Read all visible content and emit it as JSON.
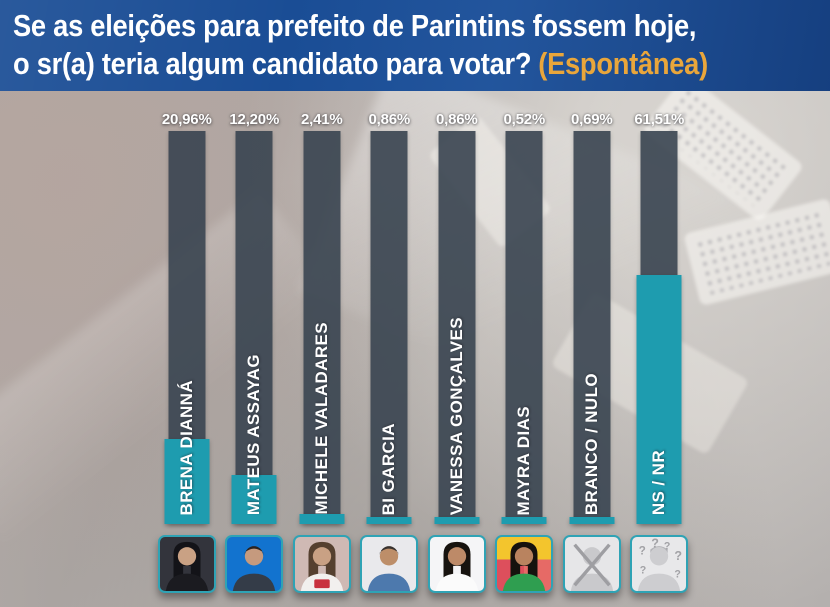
{
  "header": {
    "line1": "Se as eleições para prefeito de Parintins fossem hoje,",
    "line2": "o sr(a) teria algum candidato para votar?",
    "tag": "(Espontânea)",
    "bg_color": "#1a4d95",
    "text_color": "#ffffff",
    "tag_color": "#e9a63b"
  },
  "chart_data": {
    "type": "bar",
    "orientation": "vertical",
    "title": "Se as eleições para prefeito de Parintins fossem hoje, o sr(a) teria algum candidato para votar?",
    "subtitle_tag": "(Espontânea)",
    "categories": [
      "BRENA DIANNÁ",
      "MATEUS ASSAYAG",
      "MICHELE VALADARES",
      "BI GARCIA",
      "VANESSA GONÇALVES",
      "MAYRA DIAS",
      "BRANCO / NULO",
      "NS / NR"
    ],
    "values": [
      20.96,
      12.2,
      2.41,
      0.86,
      0.86,
      0.52,
      0.69,
      61.51
    ],
    "value_labels": [
      "20,96%",
      "12,20%",
      "2,41%",
      "0,86%",
      "0,86%",
      "0,52%",
      "0,69%",
      "61,51%"
    ],
    "unit": "%",
    "ylim": [
      0,
      100
    ],
    "grid": false,
    "legend": false,
    "bar_color": "#1e9caf",
    "track_color": "rgba(56,68,80,0.9)",
    "value_label_color": "#ffffff",
    "category_label_color": "#ffffff"
  },
  "avatars": [
    {
      "id": "brena-dianna",
      "icon": "female-photo-icon",
      "kind": "female",
      "bg": "#33343c",
      "hair": "#131318",
      "skin": "#c9a184",
      "torso": "#1b1b20"
    },
    {
      "id": "mateus-assayag",
      "icon": "male-photo-icon",
      "kind": "male",
      "bg": "#1273cf",
      "hair": "#2a2320",
      "skin": "#c59a7e",
      "torso": "#343c48"
    },
    {
      "id": "michele-valadares",
      "icon": "female-photo-icon",
      "kind": "female",
      "bg": "#cfb9b4",
      "hair": "#55402f",
      "skin": "#c9a184",
      "torso": "#f2f0ee",
      "badge": "#c8313e"
    },
    {
      "id": "bi-garcia",
      "icon": "male-photo-icon",
      "kind": "male",
      "bg": "#e9e9ec",
      "hair": "#38322f",
      "skin": "#bd8e69",
      "torso": "#4d79ad"
    },
    {
      "id": "vanessa-goncalves",
      "icon": "female-photo-icon",
      "kind": "female",
      "bg": "#f5f5f7",
      "hair": "#17130f",
      "skin": "#bd8a68",
      "torso": "#fbfbfb"
    },
    {
      "id": "mayra-dias",
      "icon": "female-photo-icon",
      "kind": "female",
      "bg": "linear-gradient(180deg,#f3c52d 0 42%, rgba(0,0,0,0) 42%), linear-gradient(90deg,#dd4f5c 0 50%, #e66a66 50%)",
      "hair": "#16120e",
      "skin": "#b9835f",
      "torso": "#2f9e50"
    },
    {
      "id": "branco-nulo",
      "icon": "voided-ballot-icon",
      "kind": "crossed",
      "bg": "#e6e6e8",
      "person": "#c9c9cc",
      "stroke": "#9e9ea2"
    },
    {
      "id": "ns-nr",
      "icon": "unknown-person-icon",
      "kind": "unknown",
      "bg": "#e8e8ea",
      "person": "#cdcdd0",
      "hair": "#b4b4b8",
      "marks": "#a2a2a6"
    }
  ]
}
